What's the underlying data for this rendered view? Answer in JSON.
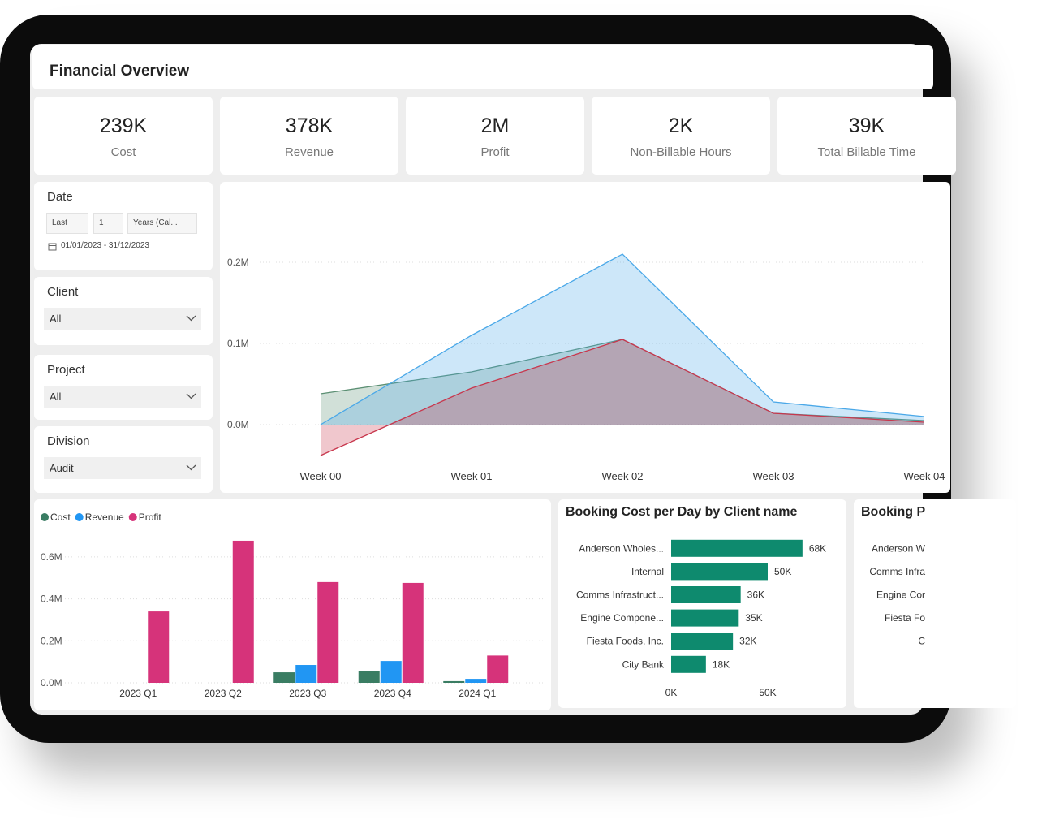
{
  "header": {
    "title": "Financial Overview"
  },
  "kpis": [
    {
      "value": "239K",
      "label": "Cost"
    },
    {
      "value": "378K",
      "label": "Revenue"
    },
    {
      "value": "2M",
      "label": "Profit"
    },
    {
      "value": "2K",
      "label": "Non-Billable Hours"
    },
    {
      "value": "39K",
      "label": "Total Billable Time"
    }
  ],
  "filters": {
    "date": {
      "title": "Date",
      "mode": "Last",
      "count": "1",
      "unit": "Years (Cal...",
      "range": "01/01/2023 - 31/12/2023"
    },
    "client": {
      "title": "Client",
      "value": "All"
    },
    "project": {
      "title": "Project",
      "value": "All"
    },
    "division": {
      "title": "Division",
      "value": "Audit"
    }
  },
  "chart_data": [
    {
      "type": "area",
      "categories": [
        "Week 00",
        "Week 01",
        "Week 02",
        "Week 03",
        "Week 04"
      ],
      "series": [
        {
          "color": "#5b8f73",
          "values": [
            38000,
            65000,
            105000,
            14000,
            5000
          ]
        },
        {
          "color": "#4aa8e8",
          "values": [
            0,
            110000,
            210000,
            28000,
            10000
          ]
        },
        {
          "color": "#c8374d",
          "values": [
            -38000,
            45000,
            105000,
            14000,
            3000
          ]
        }
      ],
      "ylim": [
        -50000,
        280000
      ],
      "yticks": [
        {
          "value": 0,
          "label": "0.0M"
        },
        {
          "value": 100000,
          "label": "0.1M"
        },
        {
          "value": 200000,
          "label": "0.2M"
        }
      ],
      "grid": true
    },
    {
      "type": "bar",
      "categories": [
        "2023 Q1",
        "2023 Q2",
        "2023 Q3",
        "2023 Q4",
        "2024 Q1"
      ],
      "series": [
        {
          "name": "Cost",
          "color": "#3a7d63",
          "values": [
            0,
            0,
            50000,
            58000,
            8000
          ]
        },
        {
          "name": "Revenue",
          "color": "#2196f3",
          "values": [
            0,
            0,
            85000,
            104000,
            19000
          ]
        },
        {
          "name": "Profit",
          "color": "#d6337a",
          "values": [
            340000,
            677000,
            480000,
            476000,
            130000
          ]
        }
      ],
      "ylim": [
        0,
        700000
      ],
      "yticks": [
        {
          "value": 0,
          "label": "0.0M"
        },
        {
          "value": 200000,
          "label": "0.2M"
        },
        {
          "value": 400000,
          "label": "0.4M"
        },
        {
          "value": 600000,
          "label": "0.6M"
        }
      ],
      "grid": true,
      "legend": "top-left"
    },
    {
      "type": "hbar",
      "title": "Booking Cost per Day by Client name",
      "categories": [
        "Anderson Wholes...",
        "Internal",
        "Comms Infrastruct...",
        "Engine Compone...",
        "Fiesta Foods, Inc.",
        "City Bank"
      ],
      "values": [
        68000,
        50000,
        36000,
        35000,
        32000,
        18000
      ],
      "value_labels": [
        "68K",
        "50K",
        "36K",
        "35K",
        "32K",
        "18K"
      ],
      "color": "#0e8a6e",
      "xlim": [
        0,
        85000
      ],
      "xticks": [
        {
          "value": 0,
          "label": "0K"
        },
        {
          "value": 50000,
          "label": "50K"
        }
      ]
    },
    {
      "type": "hbar",
      "title": "Booking P",
      "categories": [
        "Anderson W",
        "Comms Infra",
        "Engine Cor",
        "Fiesta Fo",
        "C"
      ]
    }
  ]
}
